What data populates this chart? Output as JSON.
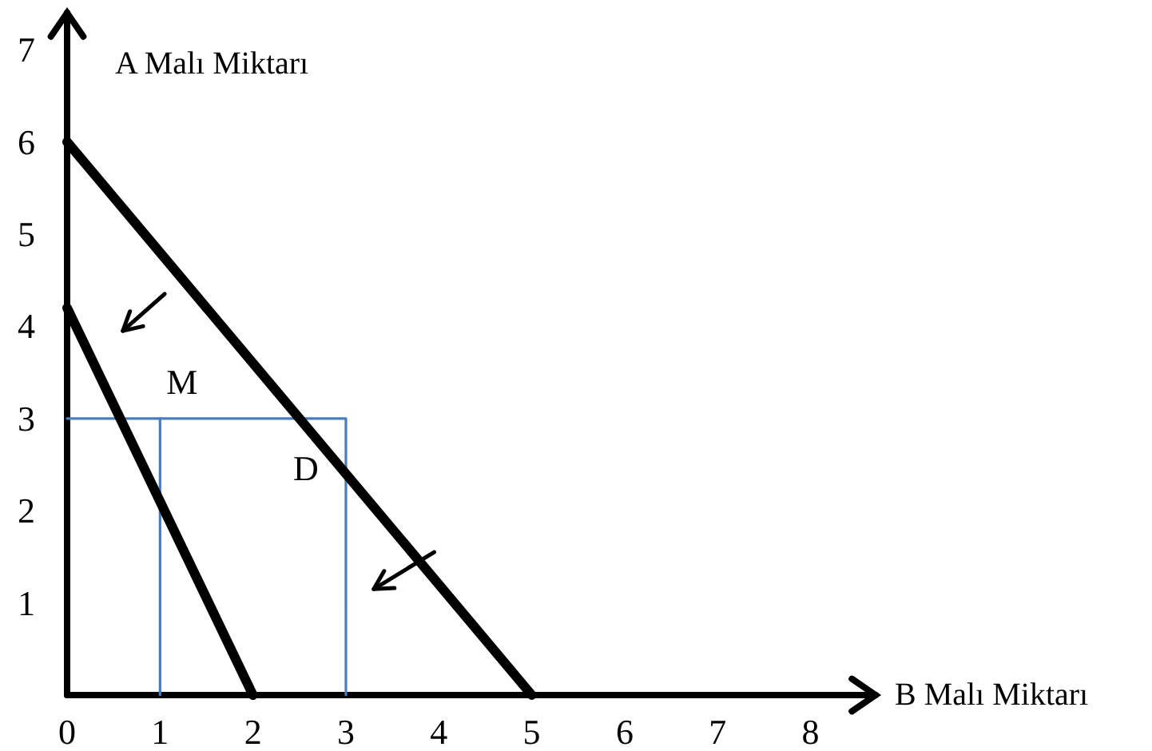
{
  "chart_data": {
    "type": "line",
    "xlabel": "B Malı Miktarı",
    "ylabel": "A Malı Miktarı",
    "xlim": [
      0,
      8.7
    ],
    "ylim": [
      0,
      7.4
    ],
    "xticks": [
      0,
      1,
      2,
      3,
      4,
      5,
      6,
      7,
      8
    ],
    "yticks": [
      1,
      2,
      3,
      4,
      5,
      6,
      7
    ],
    "marker": "none",
    "series": [
      {
        "color": "#000000",
        "x": [
          0,
          5
        ],
        "values": [
          6,
          0
        ]
      },
      {
        "color": "#000000",
        "x": [
          0,
          2
        ],
        "values": [
          4.2,
          0
        ]
      },
      {
        "color": "#4a7ebb",
        "x": [
          0,
          3,
          3
        ],
        "values": [
          3,
          3,
          0
        ]
      },
      {
        "color": "#4a7ebb",
        "x": [
          1,
          1
        ],
        "values": [
          3,
          0
        ]
      }
    ],
    "annotations": [
      {
        "text": "M",
        "x": 1,
        "y": 3
      },
      {
        "text": "D",
        "x": 3,
        "y": 3
      }
    ]
  }
}
